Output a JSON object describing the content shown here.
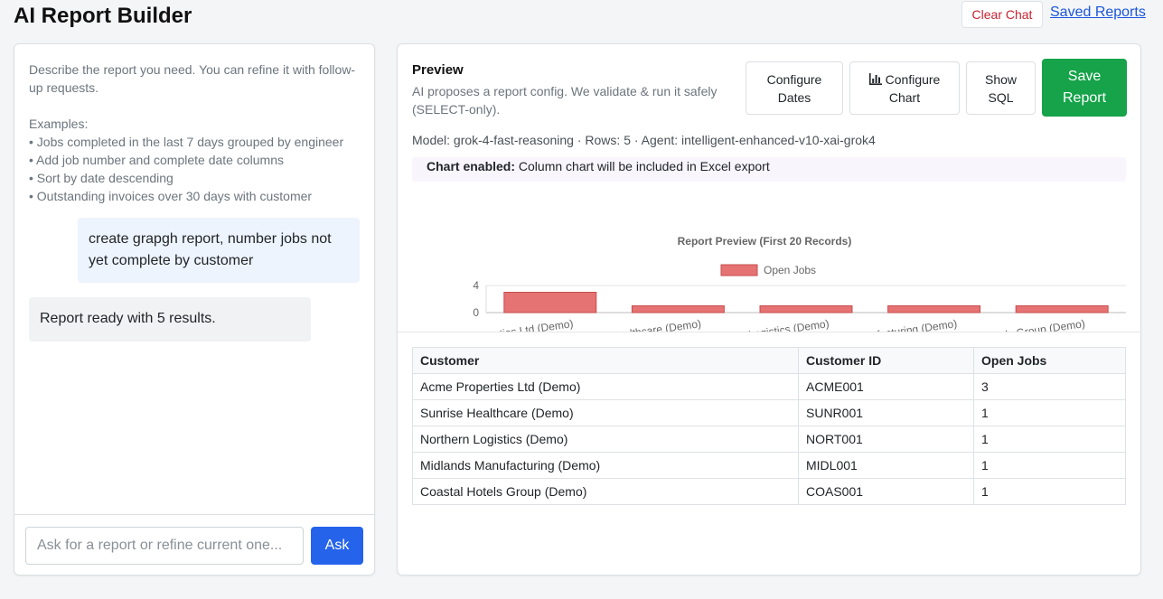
{
  "header": {
    "title": "AI Report Builder",
    "clear_chat_label": "Clear Chat",
    "saved_reports_label": "Saved Reports"
  },
  "chat": {
    "intro": "Describe the report you need. You can refine it with follow-up requests.",
    "examples_title": "Examples:",
    "examples": [
      "Jobs completed in the last 7 days grouped by engineer",
      "Add job number and complete date columns",
      "Sort by date descending",
      "Outstanding invoices over 30 days with customer"
    ],
    "messages": [
      {
        "role": "user",
        "text": "create grapgh report, number jobs not yet complete by customer"
      },
      {
        "role": "assistant",
        "text": "Report ready with 5 results."
      }
    ],
    "input_placeholder": "Ask for a report or refine current one...",
    "input_value": "",
    "ask_label": "Ask"
  },
  "preview": {
    "title": "Preview",
    "subtitle": "AI proposes a report config. We validate & run it safely (SELECT-only).",
    "buttons": {
      "configure_dates_label": "Configure Dates",
      "configure_chart_label": "Configure Chart",
      "show_sql_label": "Show SQL",
      "save_report_label": "Save Report"
    },
    "meta": "Model: grok-4-fast-reasoning · Rows: 5 · Agent: intelligent-enhanced-v10-xai-grok4",
    "banner_strong": "Chart enabled:",
    "banner_text": " Column chart will be included in Excel export"
  },
  "chart_data": {
    "type": "bar",
    "title": "Report Preview (First 20 Records)",
    "categories": [
      "Acme Properties Ltd (Demo)",
      "Sunrise Healthcare (Demo)",
      "Northern Logistics (Demo)",
      "Midlands Manufacturing (Demo)",
      "Coastal Hotels Group (Demo)"
    ],
    "series": [
      {
        "name": "Open Jobs",
        "values": [
          3,
          1,
          1,
          1,
          1
        ],
        "color": "#e57373",
        "border": "#c94c4c"
      }
    ],
    "ylim": [
      0,
      4
    ],
    "yticks": [
      0,
      4
    ],
    "legend": "top",
    "grid": true
  },
  "table": {
    "columns": [
      "Customer",
      "Customer ID",
      "Open Jobs"
    ],
    "rows": [
      [
        "Acme Properties Ltd (Demo)",
        "ACME001",
        "3"
      ],
      [
        "Sunrise Healthcare (Demo)",
        "SUNR001",
        "1"
      ],
      [
        "Northern Logistics (Demo)",
        "NORT001",
        "1"
      ],
      [
        "Midlands Manufacturing (Demo)",
        "MIDL001",
        "1"
      ],
      [
        "Coastal Hotels Group (Demo)",
        "COAS001",
        "1"
      ]
    ]
  }
}
